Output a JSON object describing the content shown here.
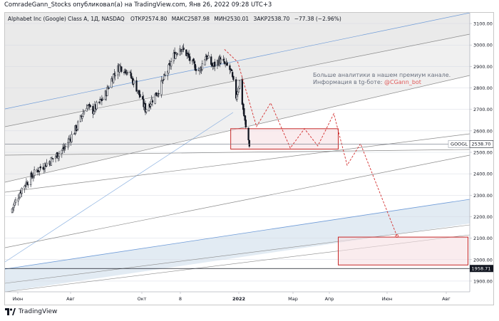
{
  "header": {
    "published_line": "ComradeGann_Stocks опубликовал(а) на TradingView.com, Янв 26, 2022 09:28 UTC+3"
  },
  "legend": {
    "symbol_line": "Alphabet Inc (Google) Class A, 1Д, NASDAQ",
    "open_label": "ОТКР",
    "open_value": "2574.80",
    "high_label": "МАКС",
    "high_value": "2587.98",
    "low_label": "МИН",
    "low_value": "2530.01",
    "close_label": "ЗАКР",
    "close_value": "2538.70",
    "change": "−77.38 (−2.96%)"
  },
  "promo": {
    "line1": "Больше аналитики в нашем премиум канале.",
    "line2_prefix": "Информация в tg-боте: ",
    "line2_handle": "@CGann_bot"
  },
  "badges": {
    "symbol": "GOOGL",
    "last_price": "2538.70",
    "hline_price": "1958.71"
  },
  "footer": {
    "brand": "TradingView"
  },
  "colors": {
    "candle": "#131722",
    "projection": "#d32f2f",
    "box_border": "#c62828",
    "box_fill": "#f6dfe3",
    "blue_line": "#6e9bd8",
    "channel_fill": "#e2ebf3",
    "grid": "#d5d9e3",
    "gray_line": "#8a8a8a",
    "promo_text": "#6b7280",
    "promo_handle": "#e05a5a"
  },
  "chart_data": {
    "type": "candlestick",
    "title": "Alphabet Inc (Google) Class A, 1Д, NASDAQ",
    "ylim": [
      1850,
      3150
    ],
    "y_ticks": [
      "3100.00",
      "3000.00",
      "2900.00",
      "2800.00",
      "2700.00",
      "2600.00",
      "2500.00",
      "2400.00",
      "2300.00",
      "2200.00",
      "2100.00",
      "2000.00",
      "1900.00"
    ],
    "x_ticks": [
      "Июн",
      "Авг",
      "Окт",
      "8",
      "2022",
      "Мар",
      "Апр",
      "Июн",
      "Авг"
    ],
    "price_series": [
      [
        "2021-05-01",
        2220
      ],
      [
        "2021-05-15",
        2340
      ],
      [
        "2021-06-01",
        2420
      ],
      [
        "2021-06-15",
        2460
      ],
      [
        "2021-07-01",
        2520
      ],
      [
        "2021-07-15",
        2620
      ],
      [
        "2021-07-26",
        2720
      ],
      [
        "2021-08-01",
        2690
      ],
      [
        "2021-08-15",
        2760
      ],
      [
        "2021-08-25",
        2860
      ],
      [
        "2021-09-01",
        2900
      ],
      [
        "2021-09-10",
        2880
      ],
      [
        "2021-09-20",
        2800
      ],
      [
        "2021-09-30",
        2700
      ],
      [
        "2021-10-05",
        2730
      ],
      [
        "2021-10-15",
        2790
      ],
      [
        "2021-10-25",
        2880
      ],
      [
        "2021-11-01",
        2950
      ],
      [
        "2021-11-08",
        2990
      ],
      [
        "2021-11-15",
        2960
      ],
      [
        "2021-11-22",
        2910
      ],
      [
        "2021-11-30",
        2880
      ],
      [
        "2021-12-07",
        2950
      ],
      [
        "2021-12-15",
        2900
      ],
      [
        "2021-12-22",
        2930
      ],
      [
        "2021-12-31",
        2900
      ],
      [
        "2022-01-04",
        2880
      ],
      [
        "2022-01-10",
        2760
      ],
      [
        "2022-01-14",
        2830
      ],
      [
        "2022-01-18",
        2700
      ],
      [
        "2022-01-21",
        2610
      ],
      [
        "2022-01-25",
        2538.7
      ]
    ],
    "projection_path": [
      [
        "2021-12-28",
        2980
      ],
      [
        "2022-01-12",
        2920
      ],
      [
        "2022-02-02",
        2620
      ],
      [
        "2022-02-18",
        2730
      ],
      [
        "2022-03-12",
        2520
      ],
      [
        "2022-03-28",
        2610
      ],
      [
        "2022-04-12",
        2530
      ],
      [
        "2022-04-30",
        2680
      ],
      [
        "2022-05-15",
        2440
      ],
      [
        "2022-05-30",
        2540
      ],
      [
        "2022-07-10",
        2110
      ]
    ],
    "boxes": [
      {
        "from": "2022-01-04",
        "to": "2022-05-05",
        "top": 2610,
        "bottom": 2515
      },
      {
        "from": "2022-05-05",
        "to": "2022-09-28",
        "top": 2105,
        "bottom": 1975
      }
    ],
    "horizontal_lines": [
      2538.7,
      1958.71
    ]
  }
}
